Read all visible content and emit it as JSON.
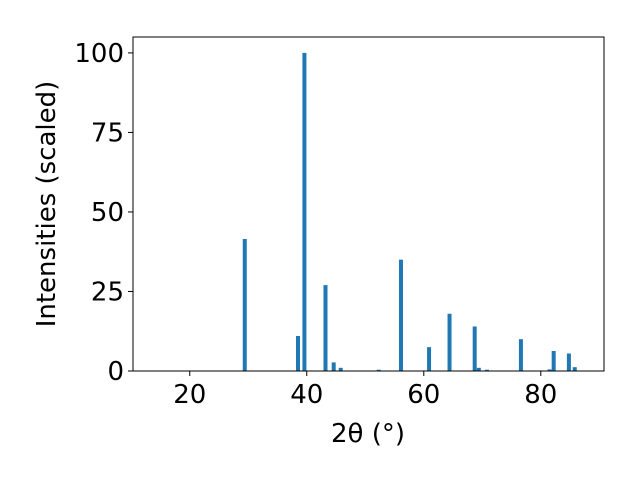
{
  "chart_data": {
    "type": "bar",
    "xlabel": "2θ (°)",
    "ylabel": "Intensities (scaled)",
    "x": [
      29.4,
      38.5,
      39.6,
      43.2,
      44.6,
      45.8,
      52.3,
      56.1,
      60.9,
      64.4,
      68.7,
      69.4,
      70.8,
      76.6,
      81.5,
      82.2,
      84.8,
      85.8
    ],
    "values": [
      41.5,
      11,
      100,
      27,
      2.7,
      1,
      0.4,
      35,
      7.5,
      18,
      14,
      1,
      0.4,
      10,
      0.5,
      6.3,
      5.5,
      1.2
    ],
    "color": "#1f77b4",
    "xlim": [
      10.3,
      90.8
    ],
    "xticks": [
      20,
      40,
      60,
      80
    ],
    "ylim": [
      0,
      105
    ],
    "yticks": [
      0,
      25,
      50,
      75,
      100
    ]
  }
}
